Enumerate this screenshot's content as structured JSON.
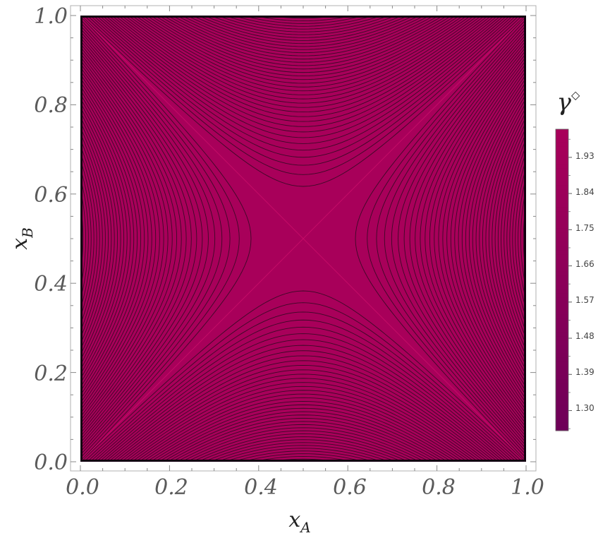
{
  "chart_data": {
    "type": "contour",
    "title": "",
    "x_axis": {
      "label_main": "x",
      "label_sub": "A",
      "range": [
        0.0,
        1.0
      ],
      "ticks": [
        0.0,
        0.2,
        0.4,
        0.6,
        0.8,
        1.0
      ],
      "tick_labels": [
        "0.0",
        "0.2",
        "0.4",
        "0.6",
        "0.8",
        "1.0"
      ]
    },
    "y_axis": {
      "label_main": "x",
      "label_sub": "B",
      "range": [
        0.0,
        1.0
      ],
      "ticks": [
        0.0,
        0.2,
        0.4,
        0.6,
        0.8,
        1.0
      ],
      "tick_labels": [
        "0.0",
        "0.2",
        "0.4",
        "0.6",
        "0.8",
        "1.0"
      ]
    },
    "colorbar": {
      "title_main": "γ",
      "title_sup": "◇",
      "range": [
        1.25,
        2.0
      ],
      "ticks": [
        1.3,
        1.39,
        1.48,
        1.57,
        1.66,
        1.75,
        1.84,
        1.93
      ],
      "tick_labels": [
        "1.30",
        "1.39",
        "1.48",
        "1.57",
        "1.66",
        "1.75",
        "1.84",
        "1.93"
      ],
      "color_high": "#a8005a",
      "color_low": "#6e0058"
    },
    "saddle_point": [
      0.5,
      0.5
    ],
    "contour_levels_per_quadrant": 40,
    "fill_color": "#a8005a",
    "line_color": "#2a0a1e",
    "grid": false
  }
}
